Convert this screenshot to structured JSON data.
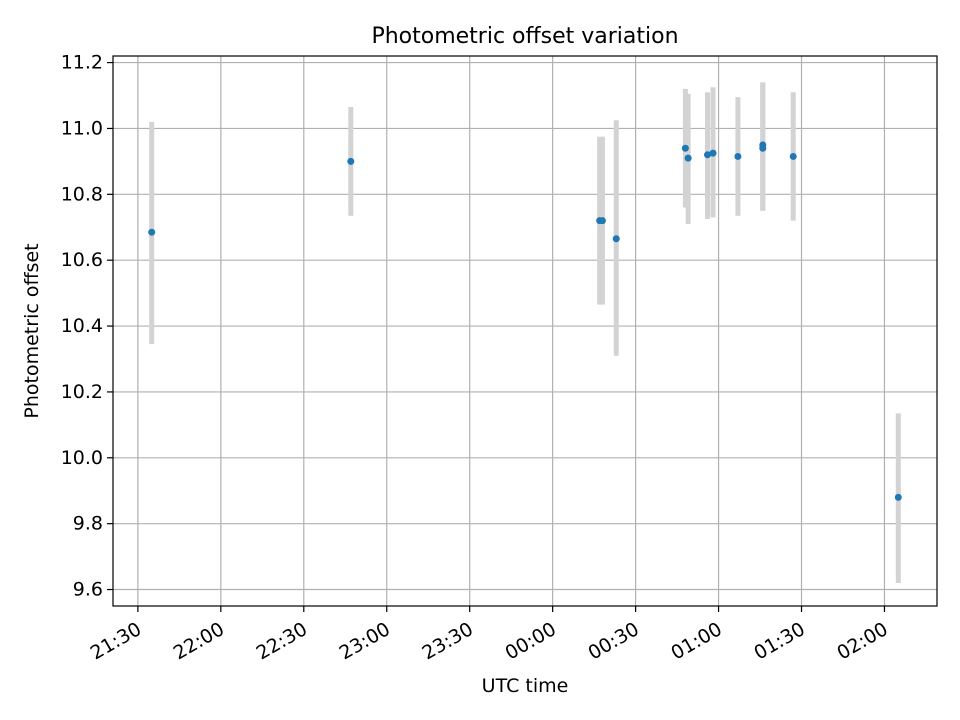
{
  "chart_data": {
    "type": "scatter",
    "title": "Photometric offset variation",
    "xlabel": "UTC time",
    "ylabel": "Photometric offset",
    "grid": true,
    "x_ticks": [
      "21:30",
      "22:00",
      "22:30",
      "23:00",
      "23:30",
      "00:00",
      "00:30",
      "01:00",
      "01:30",
      "02:00"
    ],
    "y_ticks": [
      "9.6",
      "9.8",
      "10.0",
      "10.2",
      "10.4",
      "10.6",
      "10.8",
      "11.0",
      "11.2"
    ],
    "xlim": [
      "21:21",
      "02:19"
    ],
    "ylim": [
      9.55,
      11.22
    ],
    "colors": {
      "points": "#1f77b4",
      "errorbars": "#d3d3d3",
      "grid": "#b0b0b0"
    },
    "points": [
      {
        "t": "21:35",
        "y": 10.685,
        "ylow": 10.345,
        "yhigh": 11.02
      },
      {
        "t": "22:47",
        "y": 10.9,
        "ylow": 10.735,
        "yhigh": 11.065
      },
      {
        "t": "00:17",
        "y": 10.72,
        "ylow": 10.465,
        "yhigh": 10.975
      },
      {
        "t": "00:18",
        "y": 10.72,
        "ylow": 10.465,
        "yhigh": 10.975
      },
      {
        "t": "00:23",
        "y": 10.665,
        "ylow": 10.31,
        "yhigh": 11.025
      },
      {
        "t": "00:48",
        "y": 10.94,
        "ylow": 10.76,
        "yhigh": 11.12
      },
      {
        "t": "00:49",
        "y": 10.91,
        "ylow": 10.71,
        "yhigh": 11.105
      },
      {
        "t": "00:56",
        "y": 10.92,
        "ylow": 10.725,
        "yhigh": 11.11
      },
      {
        "t": "00:58",
        "y": 10.925,
        "ylow": 10.73,
        "yhigh": 11.125
      },
      {
        "t": "01:07",
        "y": 10.915,
        "ylow": 10.735,
        "yhigh": 11.095
      },
      {
        "t": "01:16",
        "y": 10.95,
        "ylow": 10.75,
        "yhigh": 11.14
      },
      {
        "t": "01:16",
        "y": 10.94,
        "ylow": 10.75,
        "yhigh": 11.14
      },
      {
        "t": "01:27",
        "y": 10.915,
        "ylow": 10.72,
        "yhigh": 11.11
      },
      {
        "t": "02:05",
        "y": 9.88,
        "ylow": 9.62,
        "yhigh": 10.135
      }
    ]
  }
}
